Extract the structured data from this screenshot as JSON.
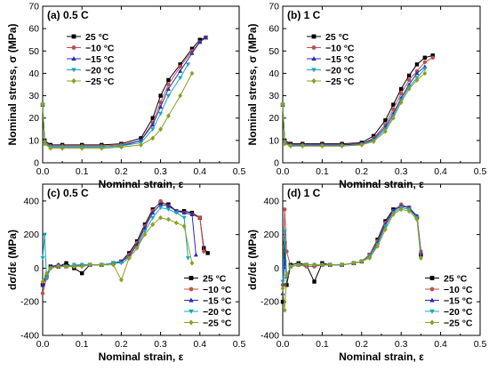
{
  "figure": {
    "colors": [
      "#000000",
      "#c0504d",
      "#2b2bb8",
      "#17a8b8",
      "#8ba020"
    ]
  },
  "chart_data": [
    {
      "type": "line",
      "panel_label": "(a) 0.5 C",
      "xlabel": "Nominal strain, ε",
      "ylabel": "Nominal stress, σ (MPa)",
      "xlim": [
        0,
        0.5
      ],
      "ylim": [
        0,
        70
      ],
      "xticks": [
        "0.0",
        "0.1",
        "0.2",
        "0.3",
        "0.4",
        "0.5"
      ],
      "yticks": [
        "0",
        "10",
        "20",
        "30",
        "40",
        "50",
        "60",
        "70"
      ],
      "legend_position": "top-left",
      "grid": false,
      "series": [
        {
          "name": "25 °C",
          "marker": "square",
          "x": [
            0,
            0.005,
            0.02,
            0.05,
            0.1,
            0.15,
            0.2,
            0.25,
            0.28,
            0.3,
            0.32,
            0.35,
            0.38,
            0.4,
            0.415
          ],
          "y": [
            26,
            10,
            8,
            8,
            8,
            8,
            8.5,
            11,
            20,
            30,
            37,
            44,
            51,
            55,
            56
          ]
        },
        {
          "name": "−10 °C",
          "marker": "circle",
          "x": [
            0,
            0.005,
            0.02,
            0.05,
            0.1,
            0.15,
            0.2,
            0.25,
            0.28,
            0.3,
            0.32,
            0.35,
            0.38,
            0.4,
            0.415
          ],
          "y": [
            26,
            9.5,
            7.5,
            7.5,
            7.5,
            7.5,
            8,
            10,
            18,
            27,
            35,
            43,
            50,
            54,
            56
          ]
        },
        {
          "name": "−15 °C",
          "marker": "triangle-up",
          "x": [
            0,
            0.005,
            0.02,
            0.05,
            0.1,
            0.15,
            0.2,
            0.25,
            0.28,
            0.3,
            0.32,
            0.35,
            0.38,
            0.4,
            0.415
          ],
          "y": [
            26,
            9,
            7,
            7,
            7,
            7,
            7.5,
            10,
            17,
            25,
            33,
            41,
            49,
            54,
            56
          ]
        },
        {
          "name": "−20 °C",
          "marker": "triangle-down",
          "x": [
            0,
            0.005,
            0.02,
            0.05,
            0.1,
            0.15,
            0.2,
            0.25,
            0.28,
            0.3,
            0.32,
            0.35,
            0.37
          ],
          "y": [
            26,
            9,
            7,
            7,
            7,
            7,
            7.5,
            9,
            15,
            22,
            30,
            38,
            44
          ]
        },
        {
          "name": "−25 °C",
          "marker": "diamond",
          "x": [
            0,
            0.005,
            0.02,
            0.05,
            0.1,
            0.15,
            0.2,
            0.25,
            0.28,
            0.3,
            0.32,
            0.35,
            0.38
          ],
          "y": [
            26,
            8.5,
            6.5,
            6.5,
            6.5,
            6.5,
            7,
            8,
            11,
            15,
            21,
            30,
            40
          ]
        }
      ]
    },
    {
      "type": "line",
      "panel_label": "(b) 1 C",
      "xlabel": "Nominal strain, ε",
      "ylabel": "Nominal stress, σ (MPa)",
      "xlim": [
        0,
        0.5
      ],
      "ylim": [
        0,
        70
      ],
      "xticks": [
        "0.0",
        "0.1",
        "0.2",
        "0.3",
        "0.4",
        "0.5"
      ],
      "yticks": [
        "0",
        "10",
        "20",
        "30",
        "40",
        "50",
        "60",
        "70"
      ],
      "legend_position": "top-left",
      "grid": false,
      "series": [
        {
          "name": "25 °C",
          "marker": "square",
          "x": [
            0,
            0.005,
            0.02,
            0.05,
            0.1,
            0.15,
            0.2,
            0.23,
            0.26,
            0.28,
            0.3,
            0.32,
            0.34,
            0.36,
            0.38
          ],
          "y": [
            26,
            10,
            8.5,
            8.5,
            8.5,
            8.5,
            9,
            12,
            19,
            26,
            33,
            39,
            44,
            47,
            48
          ]
        },
        {
          "name": "−10 °C",
          "marker": "circle",
          "x": [
            0,
            0.005,
            0.02,
            0.05,
            0.1,
            0.15,
            0.2,
            0.23,
            0.26,
            0.28,
            0.3,
            0.32,
            0.34,
            0.36,
            0.38
          ],
          "y": [
            26,
            9.5,
            8,
            8,
            8,
            8,
            8.5,
            11,
            17,
            24,
            31,
            37,
            41,
            45,
            47
          ]
        },
        {
          "name": "−15 °C",
          "marker": "triangle-up",
          "x": [
            0,
            0.005,
            0.02,
            0.05,
            0.1,
            0.15,
            0.2,
            0.23,
            0.26,
            0.28,
            0.3,
            0.32,
            0.34,
            0.36
          ],
          "y": [
            26,
            9,
            8,
            8,
            8,
            8,
            8.5,
            10.5,
            16,
            22,
            29,
            35,
            40,
            43
          ]
        },
        {
          "name": "−20 °C",
          "marker": "triangle-down",
          "x": [
            0,
            0.005,
            0.02,
            0.05,
            0.1,
            0.15,
            0.2,
            0.23,
            0.26,
            0.28,
            0.3,
            0.32,
            0.34,
            0.36
          ],
          "y": [
            26,
            9,
            7.5,
            7.5,
            7.5,
            7.5,
            8,
            10,
            15,
            21,
            28,
            34,
            38,
            42
          ]
        },
        {
          "name": "−25 °C",
          "marker": "diamond",
          "x": [
            0,
            0.005,
            0.02,
            0.05,
            0.1,
            0.15,
            0.2,
            0.23,
            0.26,
            0.28,
            0.3,
            0.32,
            0.34,
            0.36
          ],
          "y": [
            26,
            8.5,
            7.5,
            7.5,
            7.5,
            7.5,
            8,
            9.5,
            14,
            20,
            27,
            33,
            37,
            40
          ]
        }
      ]
    },
    {
      "type": "line",
      "panel_label": "(c) 0.5 C",
      "xlabel": "Nominal strain, ε",
      "ylabel": "dσ/dε (MPa)",
      "xlim": [
        0,
        0.5
      ],
      "ylim": [
        -400,
        500
      ],
      "xticks": [
        "0.0",
        "0.1",
        "0.2",
        "0.3",
        "0.4",
        "0.5"
      ],
      "yticks": [
        "-400",
        "-200",
        "0",
        "200",
        "400"
      ],
      "legend_position": "bottom-right",
      "grid": false,
      "series": [
        {
          "name": "25 °C",
          "marker": "square",
          "x": [
            0,
            0.01,
            0.02,
            0.04,
            0.06,
            0.08,
            0.1,
            0.12,
            0.15,
            0.18,
            0.2,
            0.22,
            0.24,
            0.26,
            0.28,
            0.3,
            0.32,
            0.34,
            0.36,
            0.38,
            0.4,
            0.41,
            0.42
          ],
          "y": [
            -100,
            -50,
            10,
            10,
            30,
            0,
            -30,
            20,
            20,
            30,
            40,
            90,
            160,
            260,
            350,
            390,
            380,
            340,
            340,
            330,
            300,
            120,
            90
          ]
        },
        {
          "name": "−10 °C",
          "marker": "circle",
          "x": [
            0,
            0.01,
            0.02,
            0.04,
            0.06,
            0.08,
            0.1,
            0.12,
            0.15,
            0.18,
            0.2,
            0.22,
            0.24,
            0.26,
            0.28,
            0.3,
            0.32,
            0.34,
            0.36,
            0.38,
            0.4,
            0.41
          ],
          "y": [
            -150,
            -60,
            0,
            20,
            10,
            10,
            20,
            20,
            20,
            30,
            40,
            80,
            150,
            250,
            340,
            400,
            370,
            340,
            330,
            320,
            300,
            100
          ]
        },
        {
          "name": "−15 °C",
          "marker": "triangle-up",
          "x": [
            0,
            0.01,
            0.02,
            0.04,
            0.06,
            0.08,
            0.1,
            0.12,
            0.15,
            0.18,
            0.2,
            0.22,
            0.24,
            0.26,
            0.28,
            0.3,
            0.32,
            0.34,
            0.36,
            0.38,
            0.39
          ],
          "y": [
            -100,
            -40,
            10,
            20,
            10,
            20,
            20,
            20,
            20,
            30,
            40,
            70,
            140,
            240,
            330,
            380,
            370,
            340,
            330,
            320,
            80
          ]
        },
        {
          "name": "−20 °C",
          "marker": "triangle-down",
          "x": [
            0,
            0.005,
            0.01,
            0.02,
            0.04,
            0.06,
            0.08,
            0.1,
            0.12,
            0.15,
            0.18,
            0.2,
            0.22,
            0.24,
            0.26,
            0.28,
            0.3,
            0.32,
            0.34,
            0.36,
            0.37
          ],
          "y": [
            60,
            200,
            -60,
            0,
            10,
            10,
            20,
            20,
            20,
            20,
            30,
            30,
            60,
            120,
            220,
            300,
            360,
            350,
            330,
            300,
            60
          ]
        },
        {
          "name": "−25 °C",
          "marker": "diamond",
          "x": [
            0,
            0.01,
            0.02,
            0.04,
            0.06,
            0.08,
            0.1,
            0.12,
            0.15,
            0.18,
            0.2,
            0.22,
            0.24,
            0.26,
            0.28,
            0.3,
            0.32,
            0.34,
            0.36,
            0.38
          ],
          "y": [
            -80,
            -30,
            0,
            10,
            10,
            10,
            10,
            20,
            20,
            20,
            -70,
            60,
            120,
            200,
            260,
            300,
            290,
            270,
            250,
            30
          ]
        }
      ]
    },
    {
      "type": "line",
      "panel_label": "(d) 1 C",
      "xlabel": "Nominal strain, ε",
      "ylabel": "dσ/dε (MPa)",
      "xlim": [
        0,
        0.5
      ],
      "ylim": [
        -400,
        500
      ],
      "xticks": [
        "0.0",
        "0.1",
        "0.2",
        "0.3",
        "0.4",
        "0.5"
      ],
      "yticks": [
        "-400",
        "-200",
        "0",
        "200",
        "400"
      ],
      "legend_position": "bottom-right",
      "grid": false,
      "series": [
        {
          "name": "25 °C",
          "marker": "square",
          "x": [
            0,
            0.005,
            0.01,
            0.02,
            0.04,
            0.06,
            0.08,
            0.1,
            0.12,
            0.15,
            0.18,
            0.2,
            0.22,
            0.24,
            0.26,
            0.28,
            0.3,
            0.32,
            0.34,
            0.35
          ],
          "y": [
            -200,
            150,
            -100,
            20,
            30,
            20,
            -80,
            30,
            20,
            20,
            30,
            40,
            80,
            170,
            280,
            350,
            370,
            360,
            300,
            80
          ]
        },
        {
          "name": "−10 °C",
          "marker": "circle",
          "x": [
            0,
            0.005,
            0.01,
            0.02,
            0.04,
            0.06,
            0.08,
            0.1,
            0.12,
            0.15,
            0.18,
            0.2,
            0.22,
            0.24,
            0.26,
            0.28,
            0.3,
            0.32,
            0.34,
            0.35
          ],
          "y": [
            -100,
            350,
            100,
            10,
            20,
            10,
            10,
            20,
            20,
            20,
            30,
            40,
            80,
            160,
            270,
            340,
            380,
            360,
            310,
            100
          ]
        },
        {
          "name": "−15 °C",
          "marker": "triangle-up",
          "x": [
            0,
            0.005,
            0.01,
            0.02,
            0.04,
            0.06,
            0.08,
            0.1,
            0.12,
            0.15,
            0.18,
            0.2,
            0.22,
            0.24,
            0.26,
            0.28,
            0.3,
            0.32,
            0.34,
            0.35
          ],
          "y": [
            -150,
            50,
            -50,
            10,
            20,
            20,
            20,
            20,
            20,
            20,
            30,
            40,
            70,
            150,
            260,
            340,
            370,
            360,
            310,
            90
          ]
        },
        {
          "name": "−20 °C",
          "marker": "triangle-down",
          "x": [
            0,
            0.005,
            0.01,
            0.02,
            0.04,
            0.06,
            0.08,
            0.1,
            0.12,
            0.15,
            0.18,
            0.2,
            0.22,
            0.24,
            0.26,
            0.28,
            0.3,
            0.32,
            0.34,
            0.35
          ],
          "y": [
            -80,
            220,
            -50,
            10,
            20,
            20,
            20,
            20,
            20,
            20,
            30,
            40,
            70,
            140,
            250,
            330,
            360,
            350,
            300,
            60
          ]
        },
        {
          "name": "−25 °C",
          "marker": "diamond",
          "x": [
            0,
            0.005,
            0.01,
            0.02,
            0.04,
            0.06,
            0.08,
            0.1,
            0.12,
            0.15,
            0.18,
            0.2,
            0.22,
            0.24,
            0.26,
            0.28,
            0.3,
            0.32,
            0.34,
            0.35
          ],
          "y": [
            -120,
            -250,
            -40,
            10,
            20,
            20,
            20,
            20,
            20,
            20,
            30,
            40,
            60,
            130,
            230,
            320,
            350,
            340,
            290,
            60
          ]
        }
      ]
    }
  ]
}
